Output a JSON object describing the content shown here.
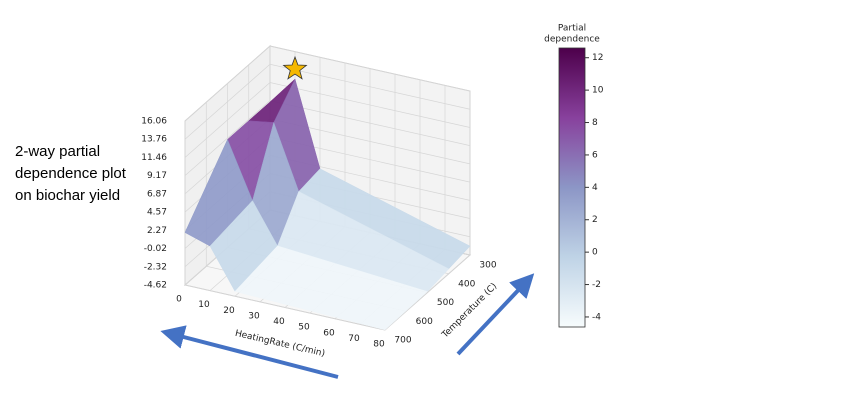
{
  "chart_data": {
    "type": "surface",
    "annotation": [
      "2-way partial",
      "dependence plot",
      "on biochar yield"
    ],
    "xlabel": "HeatingRate (C/min)",
    "ylabel": "Temperature (C)",
    "x": [
      0,
      10,
      20,
      80
    ],
    "y": [
      300,
      400,
      500,
      700
    ],
    "z": [
      [
        9,
        12.6,
        2,
        -3.5
      ],
      [
        9,
        9.5,
        1.5,
        -4
      ],
      [
        9,
        2,
        -3,
        -4.5
      ],
      [
        2,
        1,
        -4,
        -4.6
      ]
    ],
    "xlim": [
      0,
      80
    ],
    "xticks": [
      0,
      10,
      20,
      30,
      40,
      50,
      60,
      70,
      80
    ],
    "ylim": [
      300,
      700
    ],
    "yticks": [
      300,
      400,
      500,
      600,
      700
    ],
    "zlim": [
      -4.62,
      16.06
    ],
    "zticks": [
      -4.62,
      -2.32,
      -0.02,
      2.27,
      4.57,
      6.87,
      9.17,
      11.46,
      13.76,
      16.06
    ],
    "colorbar_title": [
      "Partial",
      "dependence"
    ],
    "clim": [
      -4.62,
      12.6
    ],
    "cticks": [
      -4,
      -2,
      0,
      2,
      4,
      6,
      8,
      10,
      12
    ],
    "colormap": [
      "#f7fcfd",
      "#bfd3e6",
      "#8c96c6",
      "#88419d",
      "#4d004b"
    ],
    "grid": true
  }
}
